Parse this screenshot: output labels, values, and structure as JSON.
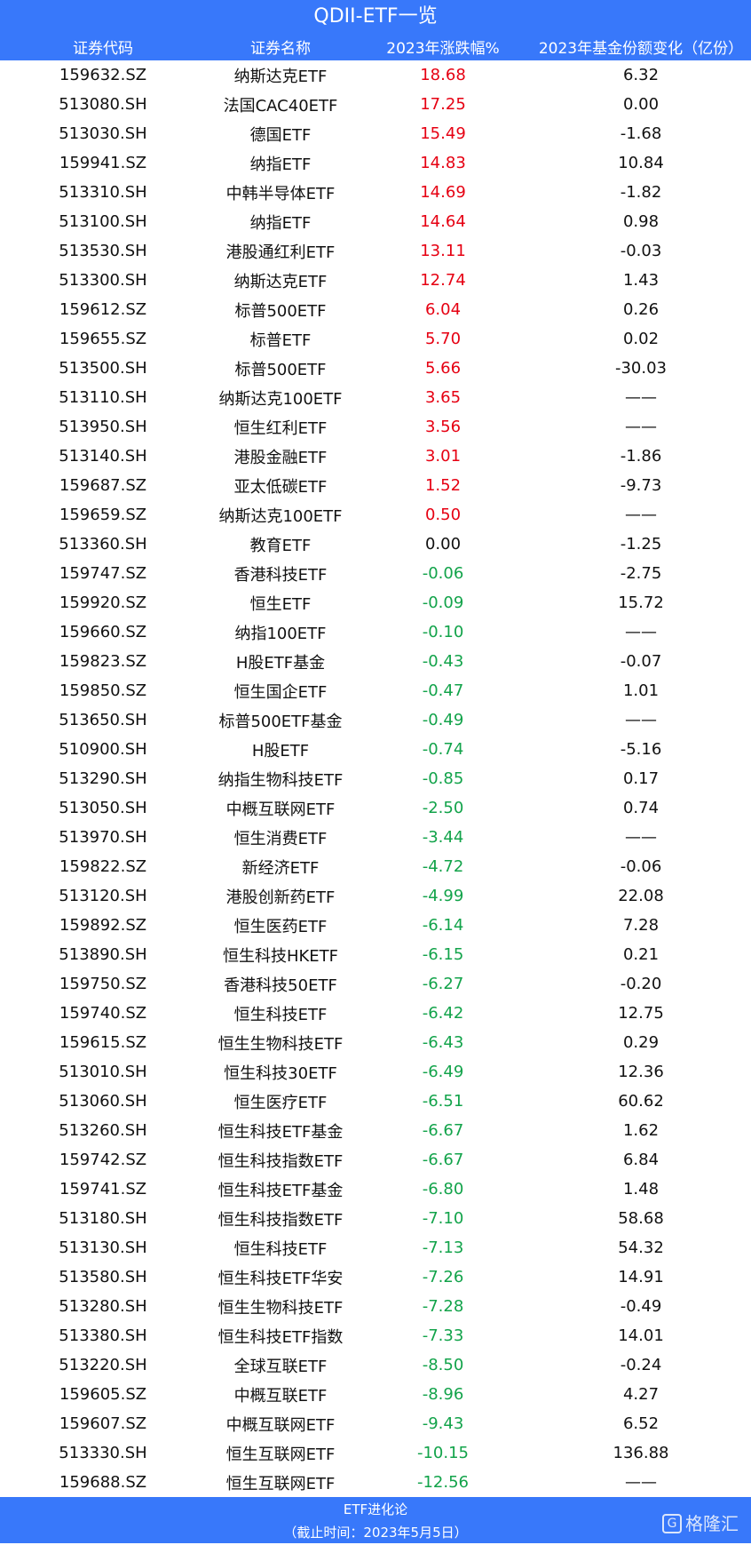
{
  "title": "QDII-ETF一览",
  "headers": [
    "证券代码",
    "证券名称",
    "2023年涨跌幅%",
    "2023年基金份额变化（亿份）"
  ],
  "colors": {
    "header_bg": "#3878fa",
    "up": "#e60012",
    "down": "#12a34a"
  },
  "rows": [
    [
      "159632.SZ",
      "纳斯达克ETF",
      "18.68",
      "6.32"
    ],
    [
      "513080.SH",
      "法国CAC40ETF",
      "17.25",
      "0.00"
    ],
    [
      "513030.SH",
      "德国ETF",
      "15.49",
      "-1.68"
    ],
    [
      "159941.SZ",
      "纳指ETF",
      "14.83",
      "10.84"
    ],
    [
      "513310.SH",
      "中韩半导体ETF",
      "14.69",
      "-1.82"
    ],
    [
      "513100.SH",
      "纳指ETF",
      "14.64",
      "0.98"
    ],
    [
      "513530.SH",
      "港股通红利ETF",
      "13.11",
      "-0.03"
    ],
    [
      "513300.SH",
      "纳斯达克ETF",
      "12.74",
      "1.43"
    ],
    [
      "159612.SZ",
      "标普500ETF",
      "6.04",
      "0.26"
    ],
    [
      "159655.SZ",
      "标普ETF",
      "5.70",
      "0.02"
    ],
    [
      "513500.SH",
      "标普500ETF",
      "5.66",
      "-30.03"
    ],
    [
      "513110.SH",
      "纳斯达克100ETF",
      "3.65",
      "——"
    ],
    [
      "513950.SH",
      "恒生红利ETF",
      "3.56",
      "——"
    ],
    [
      "513140.SH",
      "港股金融ETF",
      "3.01",
      "-1.86"
    ],
    [
      "159687.SZ",
      "亚太低碳ETF",
      "1.52",
      "-9.73"
    ],
    [
      "159659.SZ",
      "纳斯达克100ETF",
      "0.50",
      "——"
    ],
    [
      "513360.SH",
      "教育ETF",
      "0.00",
      "-1.25"
    ],
    [
      "159747.SZ",
      "香港科技ETF",
      "-0.06",
      "-2.75"
    ],
    [
      "159920.SZ",
      "恒生ETF",
      "-0.09",
      "15.72"
    ],
    [
      "159660.SZ",
      "纳指100ETF",
      "-0.10",
      "——"
    ],
    [
      "159823.SZ",
      "H股ETF基金",
      "-0.43",
      "-0.07"
    ],
    [
      "159850.SZ",
      "恒生国企ETF",
      "-0.47",
      "1.01"
    ],
    [
      "513650.SH",
      "标普500ETF基金",
      "-0.49",
      "——"
    ],
    [
      "510900.SH",
      "H股ETF",
      "-0.74",
      "-5.16"
    ],
    [
      "513290.SH",
      "纳指生物科技ETF",
      "-0.85",
      "0.17"
    ],
    [
      "513050.SH",
      "中概互联网ETF",
      "-2.50",
      "0.74"
    ],
    [
      "513970.SH",
      "恒生消费ETF",
      "-3.44",
      "——"
    ],
    [
      "159822.SZ",
      "新经济ETF",
      "-4.72",
      "-0.06"
    ],
    [
      "513120.SH",
      "港股创新药ETF",
      "-4.99",
      "22.08"
    ],
    [
      "159892.SZ",
      "恒生医药ETF",
      "-6.14",
      "7.28"
    ],
    [
      "513890.SH",
      "恒生科技HKETF",
      "-6.15",
      "0.21"
    ],
    [
      "159750.SZ",
      "香港科技50ETF",
      "-6.27",
      "-0.20"
    ],
    [
      "159740.SZ",
      "恒生科技ETF",
      "-6.42",
      "12.75"
    ],
    [
      "159615.SZ",
      "恒生生物科技ETF",
      "-6.43",
      "0.29"
    ],
    [
      "513010.SH",
      "恒生科技30ETF",
      "-6.49",
      "12.36"
    ],
    [
      "513060.SH",
      "恒生医疗ETF",
      "-6.51",
      "60.62"
    ],
    [
      "513260.SH",
      "恒生科技ETF基金",
      "-6.67",
      "1.62"
    ],
    [
      "159742.SZ",
      "恒生科技指数ETF",
      "-6.67",
      "6.84"
    ],
    [
      "159741.SZ",
      "恒生科技ETF基金",
      "-6.80",
      "1.48"
    ],
    [
      "513180.SH",
      "恒生科技指数ETF",
      "-7.10",
      "58.68"
    ],
    [
      "513130.SH",
      "恒生科技ETF",
      "-7.13",
      "54.32"
    ],
    [
      "513580.SH",
      "恒生科技ETF华安",
      "-7.26",
      "14.91"
    ],
    [
      "513280.SH",
      "恒生生物科技ETF",
      "-7.28",
      "-0.49"
    ],
    [
      "513380.SH",
      "恒生科技ETF指数",
      "-7.33",
      "14.01"
    ],
    [
      "513220.SH",
      "全球互联ETF",
      "-8.50",
      "-0.24"
    ],
    [
      "159605.SZ",
      "中概互联ETF",
      "-8.96",
      "4.27"
    ],
    [
      "159607.SZ",
      "中概互联网ETF",
      "-9.43",
      "6.52"
    ],
    [
      "513330.SH",
      "恒生互联网ETF",
      "-10.15",
      "136.88"
    ],
    [
      "159688.SZ",
      "恒生互联网ETF",
      "-12.56",
      "——"
    ]
  ],
  "footer": {
    "source": "ETF进化论",
    "date": "（截止时间：2023年5月5日）",
    "watermark": "格隆汇"
  }
}
